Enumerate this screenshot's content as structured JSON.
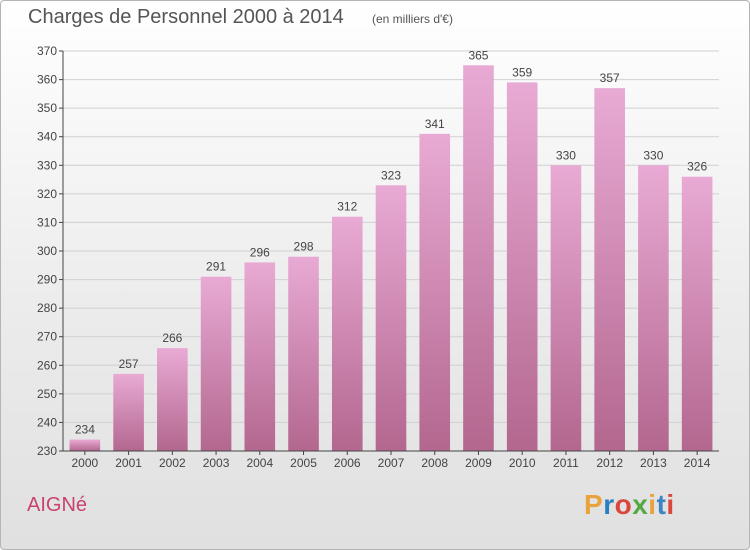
{
  "header": {
    "title": "Charges de Personnel 2000 à 2014",
    "subtitle": "(en milliers d'€)"
  },
  "footer": {
    "commune": "AIGNé",
    "logo_text": "Proxiti",
    "logo_colors": [
      "#e8a33d",
      "#2a7fc0",
      "#d9463c",
      "#56a845",
      "#e8a33d",
      "#3d84c6",
      "#d9463c"
    ]
  },
  "colors": {
    "bar_top": "#e8aad4",
    "bar_bottom": "#b3678f",
    "grid": "#d0d0d0",
    "axis": "#444444",
    "text": "#444444"
  },
  "chart_data": {
    "type": "bar",
    "categories": [
      "2000",
      "2001",
      "2002",
      "2003",
      "2004",
      "2005",
      "2006",
      "2007",
      "2008",
      "2009",
      "2010",
      "2011",
      "2012",
      "2013",
      "2014"
    ],
    "values": [
      234,
      257,
      266,
      291,
      296,
      298,
      312,
      323,
      341,
      365,
      359,
      330,
      357,
      330,
      326
    ],
    "title": "Charges de Personnel 2000 à 2014",
    "subtitle": "(en milliers d'€)",
    "ylim": [
      230,
      370
    ],
    "yticks": [
      230,
      240,
      250,
      260,
      270,
      280,
      290,
      300,
      310,
      320,
      330,
      340,
      350,
      360,
      370
    ],
    "grid": true,
    "data_labels": true
  }
}
